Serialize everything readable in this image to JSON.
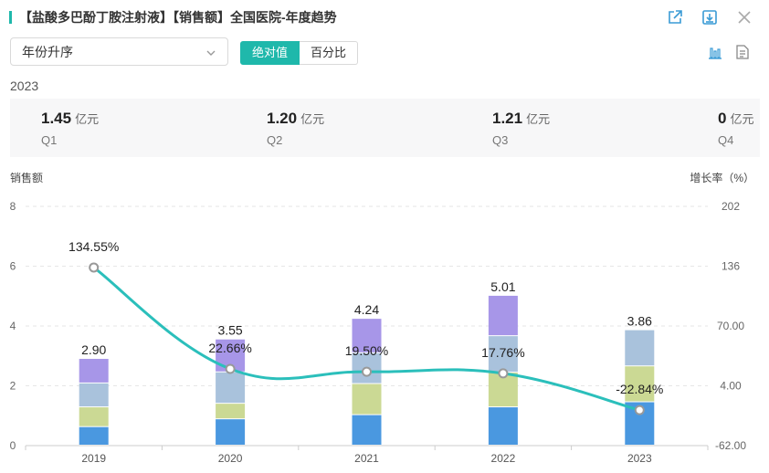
{
  "header": {
    "title": "【盐酸多巴酚丁胺注射液】【销售额】全国医院-年度趋势"
  },
  "icons": {
    "export": "export-icon",
    "download": "download-icon",
    "close": "close-icon",
    "bar_chart": "bar-chart-icon",
    "document": "document-icon",
    "chevron": "chevron-down-icon"
  },
  "controls": {
    "sort_select": "年份升序",
    "toggle": [
      "绝对值",
      "百分比"
    ],
    "toggle_active": 0
  },
  "summary": {
    "year": "2023",
    "kpis": [
      {
        "value": "1.45",
        "unit": "亿元",
        "label": "Q1"
      },
      {
        "value": "1.20",
        "unit": "亿元",
        "label": "Q2"
      },
      {
        "value": "1.21",
        "unit": "亿元",
        "label": "Q3"
      },
      {
        "value": "0",
        "unit": "亿元",
        "label": "Q4"
      }
    ]
  },
  "colors": {
    "accent": "#1fb8ab",
    "segments": [
      "#4a98e0",
      "#cbd994",
      "#a9c2dc",
      "#a796e8"
    ],
    "line": "#2bbfbb"
  },
  "chart_data": {
    "type": "bar",
    "stacked": true,
    "y_axis_title": "销售额",
    "y2_axis_title": "增长率（%）",
    "categories": [
      "2019",
      "2020",
      "2021",
      "2022",
      "2023"
    ],
    "series": [
      {
        "values": [
          0.62,
          0.88,
          1.02,
          1.28,
          1.45
        ]
      },
      {
        "values": [
          0.66,
          0.52,
          1.04,
          1.16,
          1.2
        ]
      },
      {
        "values": [
          0.8,
          1.05,
          1.03,
          1.22,
          1.21
        ]
      },
      {
        "values": [
          0.82,
          1.1,
          1.15,
          1.35,
          0
        ]
      }
    ],
    "totals": [
      2.9,
      3.55,
      4.24,
      5.01,
      3.86
    ],
    "total_labels": [
      "2.90",
      "3.55",
      "4.24",
      "5.01",
      "3.86"
    ],
    "growth": {
      "values": [
        134.55,
        22.66,
        19.5,
        17.76,
        -22.84
      ],
      "labels": [
        "134.55%",
        "22.66%",
        "19.50%",
        "17.76%",
        "-22.84%"
      ]
    },
    "y_ticks": [
      "0",
      "2",
      "4",
      "6",
      "8"
    ],
    "y_range": [
      0,
      8
    ],
    "y2_ticks": [
      "-62.00",
      "4.00",
      "70.00",
      "136",
      "202"
    ],
    "y2_range": [
      -62,
      202
    ],
    "grid": true
  }
}
